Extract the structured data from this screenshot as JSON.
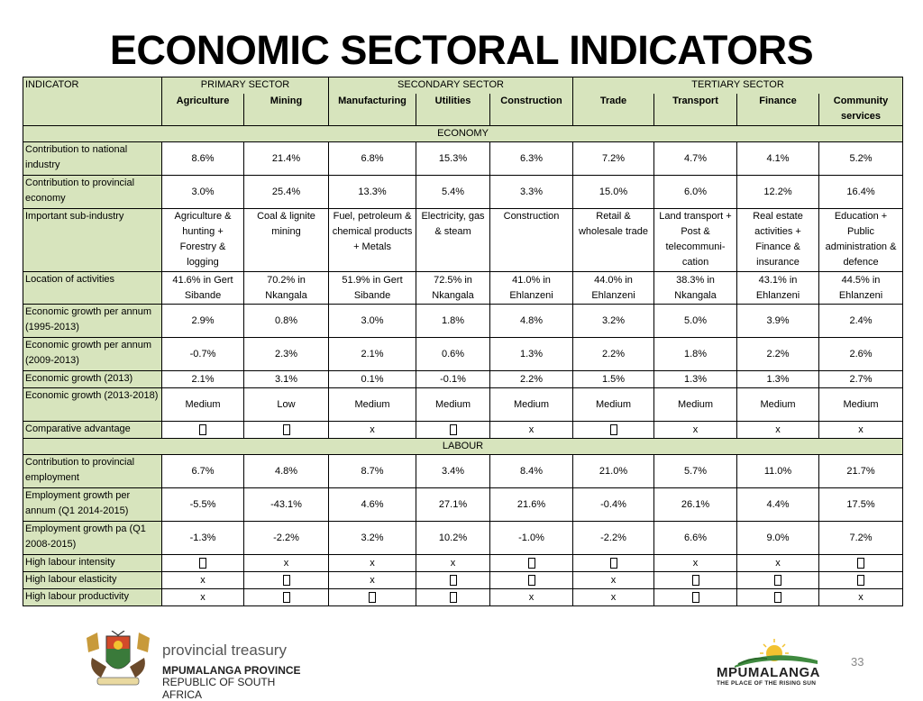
{
  "title": "ECONOMIC SECTORAL INDICATORS",
  "header": {
    "indicator_label": "INDICATOR",
    "sectors": [
      "PRIMARY SECTOR",
      "SECONDARY SECTOR",
      "TERTIARY SECTOR"
    ],
    "subsectors": [
      "Agriculture",
      "Mining",
      "Manufacturing",
      "Utilities",
      "Construction",
      "Trade",
      "Transport",
      "Finance",
      "Community services"
    ]
  },
  "economy": {
    "section_label": "ECONOMY",
    "rows": [
      {
        "label": "Contribution to national industry",
        "values": [
          "8.6%",
          "21.4%",
          "6.8%",
          "15.3%",
          "6.3%",
          "7.2%",
          "4.7%",
          "4.1%",
          "5.2%"
        ]
      },
      {
        "label": "Contribution to provincial economy",
        "values": [
          "3.0%",
          "25.4%",
          "13.3%",
          "5.4%",
          "3.3%",
          "15.0%",
          "6.0%",
          "12.2%",
          "16.4%"
        ]
      },
      {
        "label": "Important sub-industry",
        "values": [
          "Agriculture & hunting + Forestry & logging",
          "Coal & lignite mining",
          "Fuel, petroleum & chemical products + Metals",
          "Electricity, gas & steam",
          "Construction",
          "Retail & wholesale trade",
          "Land transport + Post & telecommuni-cation",
          "Real estate activities + Finance & insurance",
          "Education + Public administration & defence"
        ]
      },
      {
        "label": "Location of activities",
        "values": [
          "41.6% in Gert Sibande",
          "70.2% in Nkangala",
          "51.9% in Gert Sibande",
          "72.5% in Nkangala",
          "41.0% in Ehlanzeni",
          "44.0% in Ehlanzeni",
          "38.3% in Nkangala",
          "43.1% in Ehlanzeni",
          "44.5% in Ehlanzeni"
        ]
      },
      {
        "label": "Economic growth per annum (1995-2013)",
        "values": [
          "2.9%",
          "0.8%",
          "3.0%",
          "1.8%",
          "4.8%",
          "3.2%",
          "5.0%",
          "3.9%",
          "2.4%"
        ]
      },
      {
        "label": "Economic growth per annum (2009-2013)",
        "values": [
          "-0.7%",
          "2.3%",
          "2.1%",
          "0.6%",
          "1.3%",
          "2.2%",
          "1.8%",
          "2.2%",
          "2.6%"
        ]
      },
      {
        "label": "Economic growth (2013)",
        "values": [
          "2.1%",
          "3.1%",
          "0.1%",
          "-0.1%",
          "2.2%",
          "1.5%",
          "1.3%",
          "1.3%",
          "2.7%"
        ]
      },
      {
        "label": "Economic growth (2013-2018)",
        "values": [
          "Medium",
          "Low",
          "Medium",
          "Medium",
          "Medium",
          "Medium",
          "Medium",
          "Medium",
          "Medium"
        ]
      },
      {
        "label": "Comparative advantage",
        "values": [
          "",
          "",
          "x",
          "",
          "x",
          "",
          "x",
          "x",
          "x"
        ]
      }
    ]
  },
  "labour": {
    "section_label": "LABOUR",
    "rows": [
      {
        "label": "Contribution to provincial employment",
        "values": [
          "6.7%",
          "4.8%",
          "8.7%",
          "3.4%",
          "8.4%",
          "21.0%",
          "5.7%",
          "11.0%",
          "21.7%"
        ]
      },
      {
        "label": "Employment growth per annum (Q1 2014-2015)",
        "values": [
          "-5.5%",
          "-43.1%",
          "4.6%",
          "27.1%",
          "21.6%",
          "-0.4%",
          "26.1%",
          "4.4%",
          "17.5%"
        ]
      },
      {
        "label": "Employment growth pa (Q1 2008-2015)",
        "values": [
          "-1.3%",
          "-2.2%",
          "3.2%",
          "10.2%",
          "-1.0%",
          "-2.2%",
          "6.6%",
          "9.0%",
          "7.2%"
        ]
      },
      {
        "label": "High labour intensity",
        "values": [
          "",
          "x",
          "x",
          "x",
          "",
          "",
          "x",
          "x",
          ""
        ]
      },
      {
        "label": "High labour elasticity",
        "values": [
          "x",
          "",
          "x",
          "",
          "",
          "x",
          "",
          "",
          ""
        ]
      },
      {
        "label": "High labour productivity",
        "values": [
          "x",
          "",
          "",
          "",
          "x",
          "x",
          "",
          "",
          "x"
        ]
      }
    ]
  },
  "footer": {
    "org_name": "provincial treasury",
    "province": "MPUMALANGA PROVINCE",
    "country": "REPUBLIC OF SOUTH AFRICA",
    "logo_name": "MPUMALANGA",
    "logo_tagline": "THE PLACE OF THE RISING SUN",
    "slide_number": "33"
  },
  "icons": {
    "crest": "coat-of-arms-icon",
    "sun_logo": "rising-sun-logo-icon",
    "missing_glyph": "missing-glyph-box"
  }
}
